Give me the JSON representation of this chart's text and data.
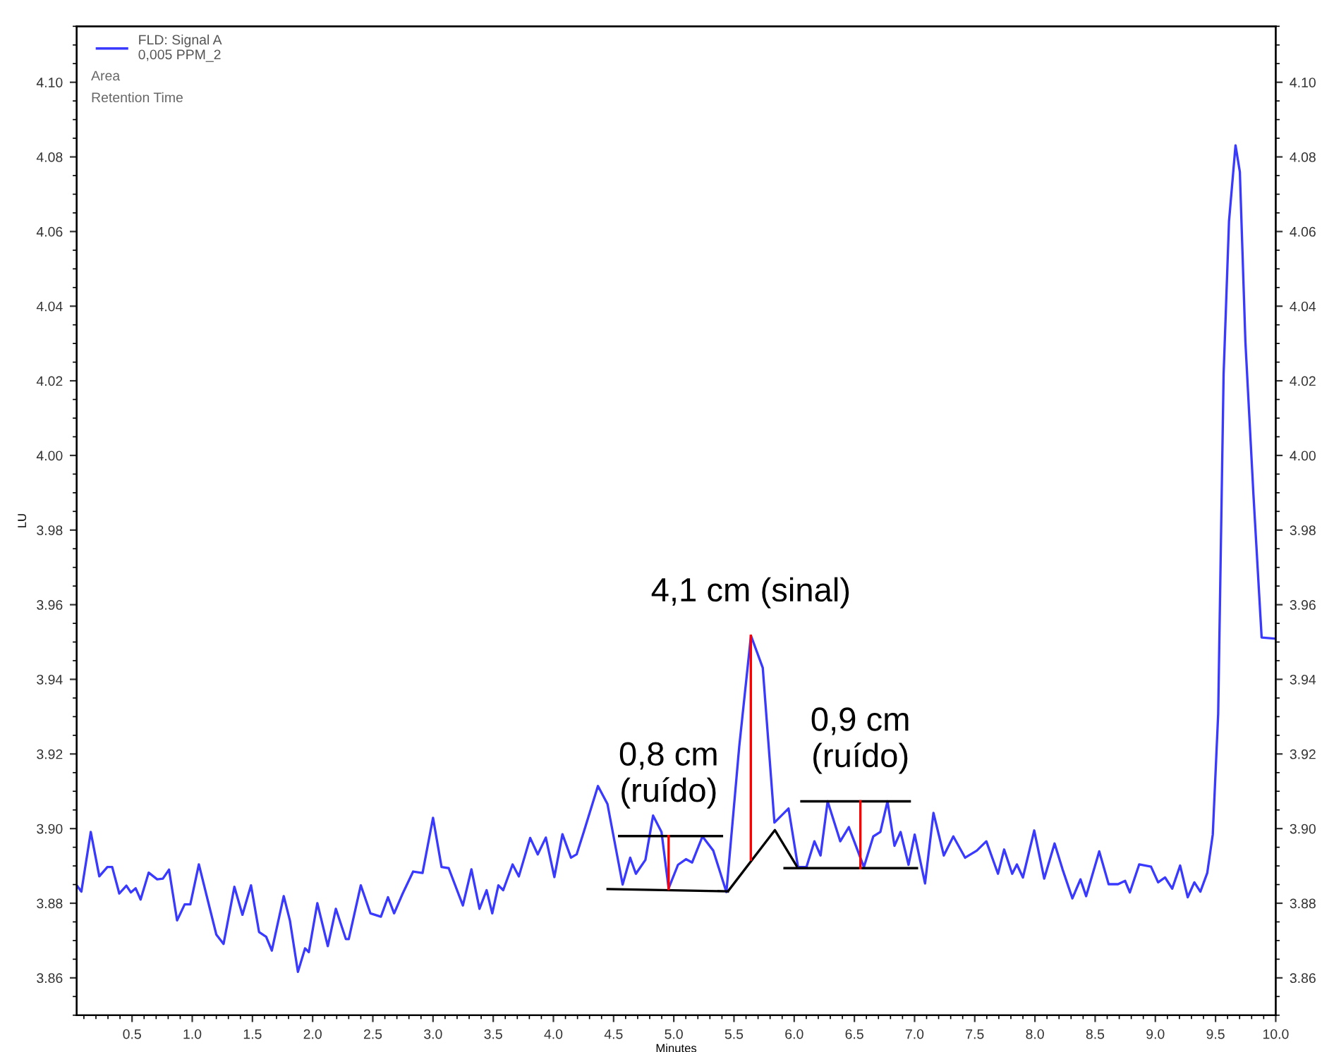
{
  "chart_data": {
    "type": "line",
    "xlabel": "Minutes",
    "ylabel": "LU",
    "xlim": [
      0.04,
      10.0
    ],
    "ylim": [
      3.85,
      4.115
    ],
    "y2lim": [
      3.85,
      4.115
    ],
    "xticks": [
      {
        "value": 0.5,
        "label": "0.5"
      },
      {
        "value": 1.0,
        "label": "1.0"
      },
      {
        "value": 1.5,
        "label": "1.5"
      },
      {
        "value": 2.0,
        "label": "2.0"
      },
      {
        "value": 2.5,
        "label": "2.5"
      },
      {
        "value": 3.0,
        "label": "3.0"
      },
      {
        "value": 3.5,
        "label": "3.5"
      },
      {
        "value": 4.0,
        "label": "4.0"
      },
      {
        "value": 4.5,
        "label": "4.5"
      },
      {
        "value": 5.0,
        "label": "5.0"
      },
      {
        "value": 5.5,
        "label": "5.5"
      },
      {
        "value": 6.0,
        "label": "6.0"
      },
      {
        "value": 6.5,
        "label": "6.5"
      },
      {
        "value": 7.0,
        "label": "7.0"
      },
      {
        "value": 7.5,
        "label": "7.5"
      },
      {
        "value": 8.0,
        "label": "8.0"
      },
      {
        "value": 8.5,
        "label": "8.5"
      },
      {
        "value": 9.0,
        "label": "9.0"
      },
      {
        "value": 9.5,
        "label": "9.5"
      },
      {
        "value": 10.0,
        "label": "10.0"
      }
    ],
    "yticks": [
      3.86,
      3.88,
      {
        "value": 3.9,
        "label": "3.90"
      },
      3.92,
      3.94,
      3.96,
      3.98,
      {
        "value": 4.0,
        "label": "4.00"
      },
      4.02,
      4.04,
      4.06,
      4.08,
      {
        "value": 4.1,
        "label": "4.10"
      }
    ],
    "y2ticks": [
      3.86,
      3.88,
      {
        "value": 3.9,
        "label": "3.90"
      },
      3.92,
      3.94,
      3.96,
      3.98,
      {
        "value": 4.0,
        "label": "4.00"
      },
      4.02,
      4.04,
      4.06,
      4.08,
      {
        "value": 4.1,
        "label": "4.10"
      }
    ],
    "grid": false,
    "legend": "top left",
    "line_style": "solid",
    "marker": "none",
    "series": [
      {
        "name": "FLD: Signal A\n0,005 PPM_2",
        "color": "#3a3aff",
        "x": [
          0.04,
          0.079,
          0.157,
          0.228,
          0.295,
          0.335,
          0.394,
          0.453,
          0.49,
          0.53,
          0.571,
          0.638,
          0.709,
          0.756,
          0.807,
          0.874,
          0.937,
          0.984,
          1.055,
          1.142,
          1.2,
          1.26,
          1.35,
          1.417,
          1.488,
          1.555,
          1.614,
          1.661,
          1.76,
          1.811,
          1.878,
          1.937,
          1.968,
          2.039,
          2.126,
          2.193,
          2.276,
          2.3,
          2.4,
          2.48,
          2.567,
          2.626,
          2.677,
          2.748,
          2.835,
          2.913,
          3.0,
          3.071,
          3.13,
          3.248,
          3.319,
          3.386,
          3.445,
          3.492,
          3.543,
          3.583,
          3.661,
          3.713,
          3.807,
          3.87,
          3.937,
          4.008,
          4.075,
          4.146,
          4.193,
          4.252,
          4.37,
          4.449,
          4.575,
          4.638,
          4.685,
          4.764,
          4.828,
          4.898,
          4.957,
          5.035,
          5.101,
          5.152,
          5.238,
          5.328,
          5.437,
          5.543,
          5.641,
          5.739,
          5.836,
          5.953,
          6.032,
          6.102,
          6.168,
          6.219,
          6.278,
          6.383,
          6.454,
          6.579,
          6.657,
          6.716,
          6.775,
          6.833,
          6.884,
          6.95,
          7.001,
          7.087,
          7.157,
          7.243,
          7.322,
          7.42,
          7.517,
          7.596,
          7.693,
          7.744,
          7.811,
          7.85,
          7.9,
          7.994,
          8.077,
          8.163,
          8.229,
          8.311,
          8.378,
          8.425,
          8.534,
          8.612,
          8.69,
          8.749,
          8.788,
          8.866,
          8.964,
          9.023,
          9.081,
          9.14,
          9.206,
          9.269,
          9.324,
          9.374,
          9.431,
          9.477,
          9.522,
          9.567,
          9.612,
          9.666,
          9.702,
          9.748,
          9.815,
          9.883,
          10.0
        ],
        "values": [
          3.8848,
          3.8831,
          3.8991,
          3.8872,
          3.8897,
          3.8897,
          3.8826,
          3.8847,
          3.8829,
          3.884,
          3.881,
          3.8882,
          3.8864,
          3.8866,
          3.889,
          3.8754,
          3.8797,
          3.8797,
          3.8904,
          3.8791,
          3.8716,
          3.8691,
          3.8844,
          3.8769,
          3.8848,
          3.8723,
          3.871,
          3.8673,
          3.8819,
          3.8754,
          3.8616,
          3.8679,
          3.8669,
          3.88,
          3.8685,
          3.8785,
          3.8704,
          3.8704,
          3.8848,
          3.8773,
          3.8764,
          3.8816,
          3.8773,
          3.8826,
          3.8885,
          3.8881,
          3.9029,
          3.8897,
          3.8894,
          3.8794,
          3.8891,
          3.8785,
          3.8835,
          3.8773,
          3.8848,
          3.8835,
          3.8904,
          3.8872,
          3.8975,
          3.8931,
          3.8976,
          3.887,
          3.8985,
          3.8922,
          3.8931,
          3.8991,
          3.9114,
          3.9066,
          3.885,
          3.8922,
          3.8879,
          3.8916,
          3.9035,
          3.8991,
          3.884,
          3.8903,
          3.8918,
          3.8909,
          3.8979,
          3.8941,
          3.883,
          3.9218,
          3.9517,
          3.9431,
          3.9016,
          3.9054,
          3.8897,
          3.8897,
          3.8966,
          3.8928,
          3.9073,
          3.8966,
          3.9004,
          3.8897,
          3.8979,
          3.8991,
          3.9073,
          3.8954,
          3.8991,
          3.8903,
          3.8984,
          3.8853,
          3.9042,
          3.8928,
          3.8979,
          3.8922,
          3.8941,
          3.8966,
          3.8879,
          3.8944,
          3.8879,
          3.8904,
          3.8869,
          3.8995,
          3.8866,
          3.896,
          3.8891,
          3.8813,
          3.8864,
          3.8819,
          3.8939,
          3.8851,
          3.8851,
          3.886,
          3.8829,
          3.8904,
          3.8898,
          3.8856,
          3.8869,
          3.8839,
          3.8901,
          3.8816,
          3.8856,
          3.8831,
          3.8881,
          3.8984,
          3.9307,
          4.0217,
          4.0628,
          4.0831,
          4.076,
          4.0305,
          3.9894,
          3.9512,
          3.9509
        ]
      },
      {
        "color": "#000000",
        "x": [
          4.546,
          5.4,
          null,
          4.45,
          5.45,
          null,
          5.45,
          5.84,
          6.02,
          null,
          6.06,
          6.96,
          null,
          5.92,
          7.02
        ],
        "values": [
          3.898,
          3.898,
          null,
          3.8838,
          3.8832,
          null,
          3.8832,
          3.8996,
          3.89,
          null,
          3.9073,
          3.9073,
          null,
          3.8894,
          3.8894
        ]
      },
      {
        "color": "#ff0000",
        "x": [
          4.957,
          4.957,
          null,
          5.64,
          5.64,
          null,
          6.55,
          6.55
        ],
        "values": [
          3.898,
          3.8838,
          null,
          3.9517,
          3.8917,
          null,
          3.9073,
          3.8894
        ]
      }
    ],
    "annotations": [
      "Area",
      "Retention Time",
      {
        "text": "4,1 cm (sinal)",
        "x": 5.64,
        "y": 3.9517
      },
      {
        "text": "0,8 cm\n(ruído)",
        "x": 4.957,
        "y": 3.898
      },
      {
        "text": "0,9 cm\n(ruído)",
        "x": 6.55,
        "y": 3.9073
      }
    ]
  }
}
